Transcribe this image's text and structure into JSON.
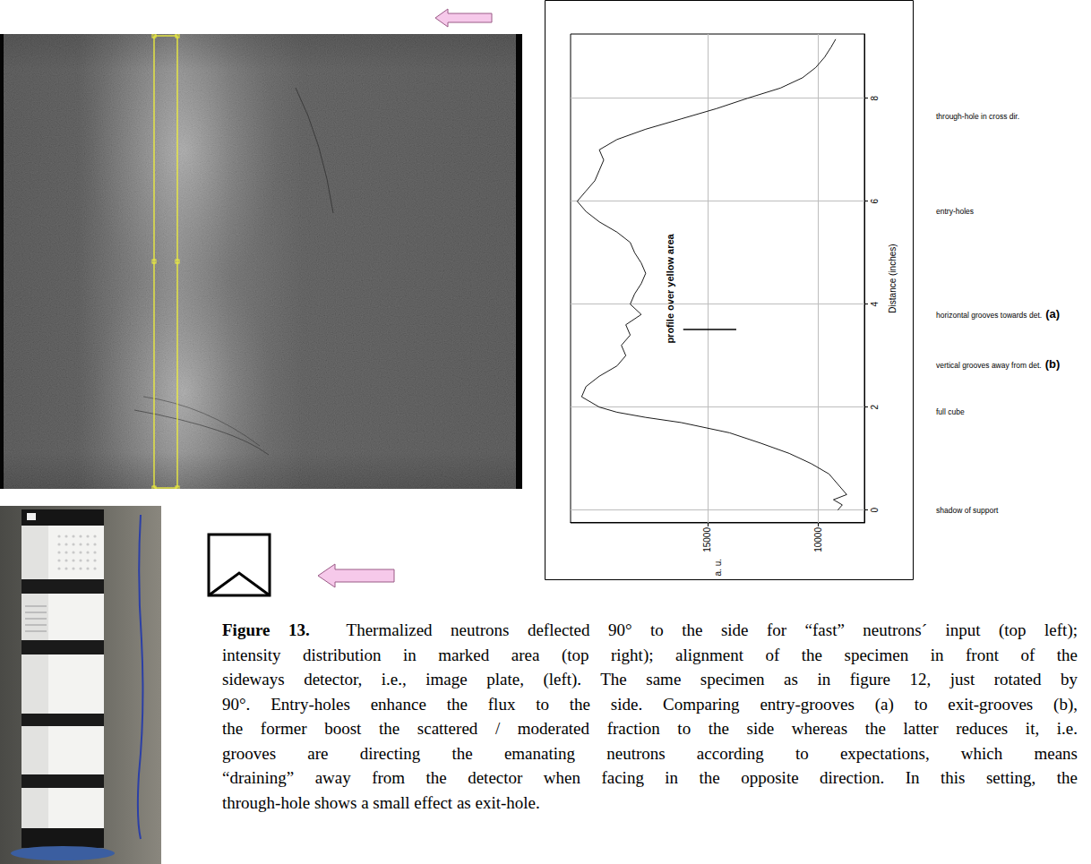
{
  "chart_data": {
    "type": "line",
    "x_label": "Distance (inches)",
    "y_label": "a. u.",
    "annotation": "profile over yellow area",
    "x": [
      0,
      0.1,
      0.2,
      0.3,
      0.5,
      0.7,
      0.9,
      1.1,
      1.3,
      1.5,
      1.7,
      1.8,
      1.9,
      2.0,
      2.2,
      2.4,
      2.6,
      2.8,
      3.0,
      3.2,
      3.4,
      3.6,
      3.8,
      4.0,
      4.2,
      4.4,
      4.6,
      4.8,
      5.0,
      5.2,
      5.4,
      5.6,
      5.8,
      6.0,
      6.2,
      6.4,
      6.6,
      6.8,
      7.0,
      7.2,
      7.4,
      7.6,
      7.8,
      8.0,
      8.2,
      8.4,
      8.6,
      8.8,
      9.0,
      9.15
    ],
    "values": [
      9100,
      8900,
      9300,
      8700,
      9100,
      9500,
      10300,
      11300,
      12600,
      14000,
      16200,
      17800,
      19100,
      19900,
      20700,
      20500,
      19900,
      19100,
      18700,
      18900,
      18500,
      18700,
      18000,
      18500,
      18300,
      18000,
      17800,
      18000,
      18300,
      18500,
      19100,
      19900,
      20500,
      20900,
      20500,
      20100,
      19900,
      19700,
      19900,
      19100,
      17800,
      16200,
      14600,
      13200,
      11700,
      10700,
      10100,
      9700,
      9400,
      9200
    ],
    "color": "#000000",
    "xlim": [
      -0.25,
      9.25
    ],
    "xticks": [
      0,
      2,
      4,
      6,
      8
    ],
    "ylim": [
      7900,
      21200
    ],
    "yticks": [
      10000,
      15000
    ],
    "grid": true,
    "marker_segment": {
      "x": 3.5,
      "y": [
        13700,
        16100
      ]
    }
  },
  "side_labels": [
    {
      "text": "through-hole in cross dir."
    },
    {
      "text": "entry-holes"
    },
    {
      "text": "horizontal grooves towards det.",
      "mark": "(a)"
    },
    {
      "text": "vertical grooves away from det.",
      "mark": "(b)"
    },
    {
      "text": "full cube"
    },
    {
      "text": "shadow of support"
    }
  ],
  "caption": {
    "label": "Figure 13.",
    "lines": [
      "Thermalized neutrons deflected 90° to the side for “fast” neutrons´ input (top left);",
      "intensity distribution in marked area (top right); alignment of the specimen in front of the",
      "sideways detector, i.e., image plate, (left). The same specimen as in figure 12, just rotated by",
      "90°. Entry-holes enhance the flux to the side. Comparing entry-grooves (a) to exit-grooves (b),",
      "the former boost the scattered / moderated fraction to the side whereas the latter reduces it, i.e.",
      "grooves are directing the emanating neutrons according to expectations, which means",
      "“draining” away from the detector when facing in the opposite direction. In this setting, the",
      "through-hole shows a small effect as exit-hole."
    ]
  }
}
